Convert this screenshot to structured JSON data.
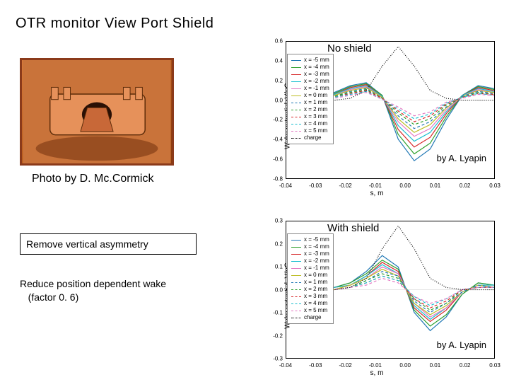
{
  "title": "OTR monitor  View Port Shield",
  "photo_credit": "Photo by D. Mc.Cormick",
  "box1": "Remove vertical asymmetry",
  "box2_line1": "Reduce position dependent wake",
  "box2_line2": "(factor 0. 6)",
  "chart_top": {
    "label": "No shield",
    "credit": "by A. Lyapin",
    "ylabel": "Wake potential, V/pC",
    "xlabel": "s, m",
    "xlim": [
      -0.04,
      0.03
    ],
    "ylim": [
      -0.8,
      0.6
    ],
    "yticks": [
      -0.8,
      -0.6,
      -0.4,
      -0.2,
      0.0,
      0.2,
      0.4,
      0.6
    ],
    "xticks": [
      -0.04,
      -0.03,
      -0.02,
      -0.01,
      0.0,
      0.01,
      0.02,
      0.03
    ],
    "series": [
      {
        "label": "x = -5 mm",
        "color": "#1f77b4",
        "dash": "solid",
        "values": [
          0.0,
          0.01,
          0.03,
          0.08,
          0.15,
          0.18,
          0.05,
          -0.4,
          -0.62,
          -0.5,
          -0.2,
          0.05,
          0.15,
          0.12
        ]
      },
      {
        "label": "x = -4 mm",
        "color": "#2ca02c",
        "dash": "solid",
        "values": [
          0.0,
          0.01,
          0.03,
          0.07,
          0.14,
          0.17,
          0.05,
          -0.35,
          -0.55,
          -0.44,
          -0.17,
          0.05,
          0.14,
          0.11
        ]
      },
      {
        "label": "x = -3 mm",
        "color": "#d62728",
        "dash": "solid",
        "values": [
          0.0,
          0.01,
          0.02,
          0.06,
          0.13,
          0.16,
          0.04,
          -0.3,
          -0.48,
          -0.38,
          -0.14,
          0.05,
          0.13,
          0.1
        ]
      },
      {
        "label": "x = -2 mm",
        "color": "#17becf",
        "dash": "solid",
        "values": [
          0.0,
          0.01,
          0.02,
          0.06,
          0.12,
          0.15,
          0.04,
          -0.26,
          -0.42,
          -0.33,
          -0.12,
          0.05,
          0.12,
          0.09
        ]
      },
      {
        "label": "x = -1 mm",
        "color": "#e377c2",
        "dash": "solid",
        "values": [
          0.0,
          0.01,
          0.02,
          0.05,
          0.11,
          0.14,
          0.03,
          -0.22,
          -0.37,
          -0.29,
          -0.1,
          0.04,
          0.11,
          0.08
        ]
      },
      {
        "label": "x = 0 mm",
        "color": "#bcbd22",
        "dash": "solid",
        "values": [
          0.0,
          0.01,
          0.02,
          0.05,
          0.1,
          0.13,
          0.03,
          -0.19,
          -0.33,
          -0.25,
          -0.08,
          0.04,
          0.1,
          0.08
        ]
      },
      {
        "label": "x = 1 mm",
        "color": "#1f77b4",
        "dash": "dashed",
        "values": [
          0.0,
          0.0,
          0.02,
          0.04,
          0.09,
          0.12,
          0.02,
          -0.16,
          -0.29,
          -0.22,
          -0.07,
          0.04,
          0.09,
          0.07
        ]
      },
      {
        "label": "x = 2 mm",
        "color": "#2ca02c",
        "dash": "dashed",
        "values": [
          0.0,
          0.0,
          0.01,
          0.04,
          0.08,
          0.11,
          0.02,
          -0.13,
          -0.25,
          -0.19,
          -0.05,
          0.03,
          0.08,
          0.06
        ]
      },
      {
        "label": "x = 3 mm",
        "color": "#d62728",
        "dash": "dashed",
        "values": [
          0.0,
          0.0,
          0.01,
          0.03,
          0.07,
          0.1,
          0.02,
          -0.11,
          -0.22,
          -0.16,
          -0.04,
          0.03,
          0.07,
          0.06
        ]
      },
      {
        "label": "x = 4 mm",
        "color": "#17becf",
        "dash": "dashed",
        "values": [
          0.0,
          0.0,
          0.01,
          0.03,
          0.06,
          0.09,
          0.01,
          -0.09,
          -0.19,
          -0.14,
          -0.03,
          0.03,
          0.07,
          0.05
        ]
      },
      {
        "label": "x = 5 mm",
        "color": "#e377c2",
        "dash": "dashed",
        "values": [
          0.0,
          0.0,
          0.01,
          0.02,
          0.05,
          0.08,
          0.01,
          -0.07,
          -0.16,
          -0.12,
          -0.02,
          0.02,
          0.06,
          0.05
        ]
      },
      {
        "label": "charge",
        "color": "#000000",
        "dash": "dotted",
        "values": [
          0.0,
          0.0,
          0.0,
          0.0,
          0.02,
          0.1,
          0.35,
          0.55,
          0.35,
          0.1,
          0.02,
          0.0,
          0.0,
          0.0
        ]
      }
    ]
  },
  "chart_bottom": {
    "label": "With shield",
    "credit": "by A. Lyapin",
    "ylabel": "Wake potential, V/pC",
    "xlabel": "s, m",
    "xlim": [
      -0.04,
      0.03
    ],
    "ylim": [
      -0.3,
      0.3
    ],
    "yticks": [
      -0.3,
      -0.2,
      -0.1,
      0.0,
      0.1,
      0.2,
      0.3
    ],
    "xticks": [
      -0.04,
      -0.03,
      -0.02,
      -0.01,
      0.0,
      0.01,
      0.02,
      0.03
    ],
    "series": [
      {
        "label": "x = -5 mm",
        "color": "#1f77b4",
        "dash": "solid",
        "values": [
          0.0,
          0.0,
          0.0,
          0.01,
          0.03,
          0.08,
          0.15,
          0.1,
          -0.1,
          -0.18,
          -0.12,
          -0.02,
          0.03,
          0.02
        ]
      },
      {
        "label": "x = -4 mm",
        "color": "#2ca02c",
        "dash": "solid",
        "values": [
          0.0,
          0.0,
          0.0,
          0.01,
          0.03,
          0.07,
          0.13,
          0.09,
          -0.09,
          -0.16,
          -0.11,
          -0.02,
          0.03,
          0.02
        ]
      },
      {
        "label": "x = -3 mm",
        "color": "#d62728",
        "dash": "solid",
        "values": [
          0.0,
          0.0,
          0.0,
          0.01,
          0.02,
          0.06,
          0.12,
          0.08,
          -0.08,
          -0.14,
          -0.09,
          -0.01,
          0.02,
          0.02
        ]
      },
      {
        "label": "x = -2 mm",
        "color": "#17becf",
        "dash": "solid",
        "values": [
          0.0,
          0.0,
          0.0,
          0.01,
          0.02,
          0.06,
          0.11,
          0.07,
          -0.07,
          -0.13,
          -0.08,
          -0.01,
          0.02,
          0.02
        ]
      },
      {
        "label": "x = -1 mm",
        "color": "#e377c2",
        "dash": "solid",
        "values": [
          0.0,
          0.0,
          0.0,
          0.0,
          0.02,
          0.05,
          0.1,
          0.07,
          -0.06,
          -0.12,
          -0.08,
          -0.01,
          0.02,
          0.01
        ]
      },
      {
        "label": "x = 0 mm",
        "color": "#bcbd22",
        "dash": "solid",
        "values": [
          0.0,
          0.0,
          0.0,
          0.0,
          0.02,
          0.05,
          0.09,
          0.06,
          -0.06,
          -0.11,
          -0.07,
          -0.01,
          0.02,
          0.01
        ]
      },
      {
        "label": "x = 1 mm",
        "color": "#1f77b4",
        "dash": "dashed",
        "values": [
          0.0,
          0.0,
          0.0,
          0.0,
          0.01,
          0.04,
          0.08,
          0.06,
          -0.05,
          -0.1,
          -0.06,
          -0.01,
          0.02,
          0.01
        ]
      },
      {
        "label": "x = 2 mm",
        "color": "#2ca02c",
        "dash": "dashed",
        "values": [
          0.0,
          0.0,
          0.0,
          0.0,
          0.01,
          0.04,
          0.07,
          0.05,
          -0.04,
          -0.09,
          -0.06,
          0.0,
          0.01,
          0.01
        ]
      },
      {
        "label": "x = 3 mm",
        "color": "#d62728",
        "dash": "dashed",
        "values": [
          0.0,
          0.0,
          0.0,
          0.0,
          0.01,
          0.03,
          0.06,
          0.04,
          -0.04,
          -0.08,
          -0.05,
          0.0,
          0.01,
          0.01
        ]
      },
      {
        "label": "x = 4 mm",
        "color": "#17becf",
        "dash": "dashed",
        "values": [
          0.0,
          0.0,
          0.0,
          0.0,
          0.01,
          0.03,
          0.06,
          0.04,
          -0.03,
          -0.07,
          -0.04,
          0.0,
          0.01,
          0.01
        ]
      },
      {
        "label": "x = 5 mm",
        "color": "#e377c2",
        "dash": "dashed",
        "values": [
          0.0,
          0.0,
          0.0,
          0.0,
          0.01,
          0.02,
          0.05,
          0.03,
          -0.03,
          -0.06,
          -0.04,
          0.0,
          0.01,
          0.01
        ]
      },
      {
        "label": "charge",
        "color": "#000000",
        "dash": "dotted",
        "values": [
          0.0,
          0.0,
          0.0,
          0.0,
          0.01,
          0.05,
          0.18,
          0.28,
          0.18,
          0.05,
          0.01,
          0.0,
          0.0,
          0.0
        ]
      }
    ]
  }
}
